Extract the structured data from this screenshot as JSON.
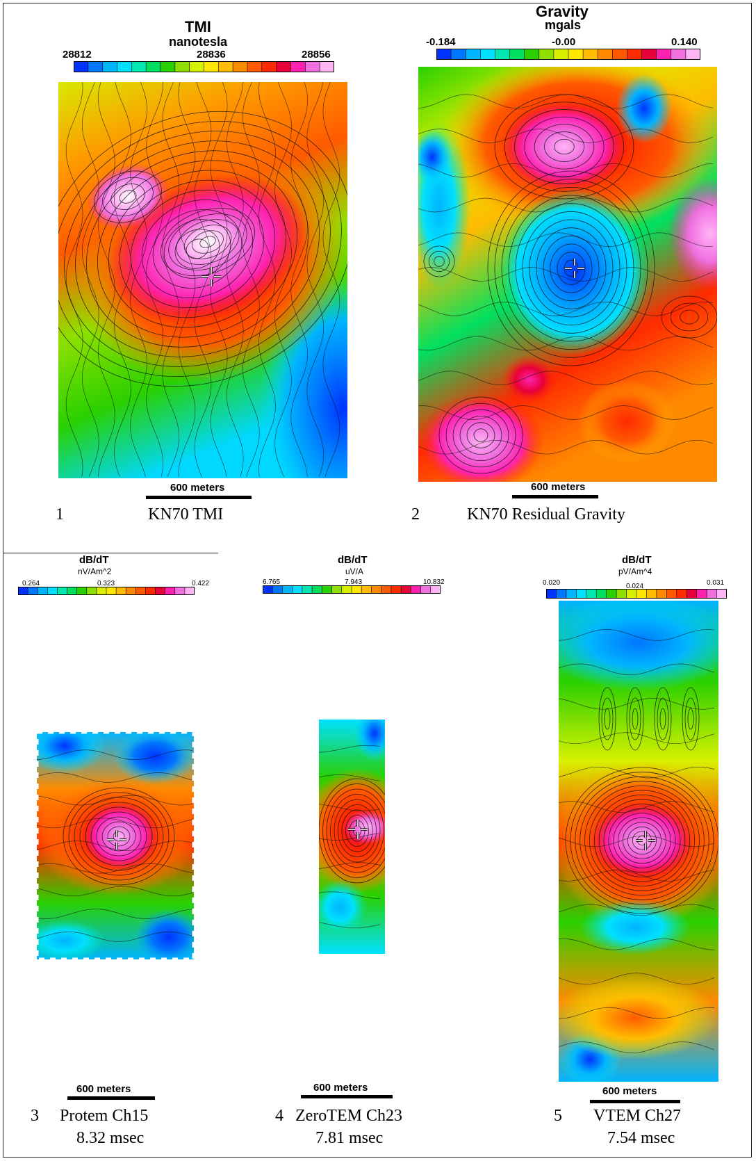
{
  "panels": [
    {
      "number": "1",
      "title": "KN70 TMI",
      "subtitle": "",
      "legend": {
        "title": "TMI",
        "unit": "nanotesla",
        "min": "28812",
        "mid": "28836",
        "max": "28856"
      },
      "scale": "600 meters"
    },
    {
      "number": "2",
      "title": "KN70 Residual Gravity",
      "subtitle": "",
      "legend": {
        "title": "Gravity",
        "unit": "mgals",
        "min": "-0.184",
        "mid": "-0.00",
        "max": "0.140"
      },
      "scale": "600 meters"
    },
    {
      "number": "3",
      "title": "Protem Ch15",
      "subtitle": "8.32 msec",
      "legend": {
        "title": "dB/dT",
        "unit": "nV/Am^2",
        "min": "0.264",
        "mid": "0.323",
        "max": "0.422"
      },
      "scale": "600 meters"
    },
    {
      "number": "4",
      "title": "ZeroTEM Ch23",
      "subtitle": "7.81 msec",
      "legend": {
        "title": "dB/dT",
        "unit": "uV/A",
        "min": "6.765",
        "mid": "7.943",
        "max": "10.832"
      },
      "scale": "600 meters"
    },
    {
      "number": "5",
      "title": "VTEM Ch27",
      "subtitle": "7.54 msec",
      "legend": {
        "title": "dB/dT",
        "unit": "pV/Am^4",
        "min": "0.020",
        "mid": "0.024",
        "max": "0.031"
      },
      "scale": "600 meters"
    }
  ],
  "colors": {
    "palette": [
      "#0033ff",
      "#0077ff",
      "#00b4ff",
      "#00e0ff",
      "#00e8b0",
      "#00e060",
      "#2ad000",
      "#8fe000",
      "#d8f000",
      "#ffe600",
      "#ffbc00",
      "#ff8a00",
      "#ff5a00",
      "#ff2a00",
      "#e8003a",
      "#ff22b0",
      "#f070e0",
      "#ffb4f4"
    ]
  }
}
